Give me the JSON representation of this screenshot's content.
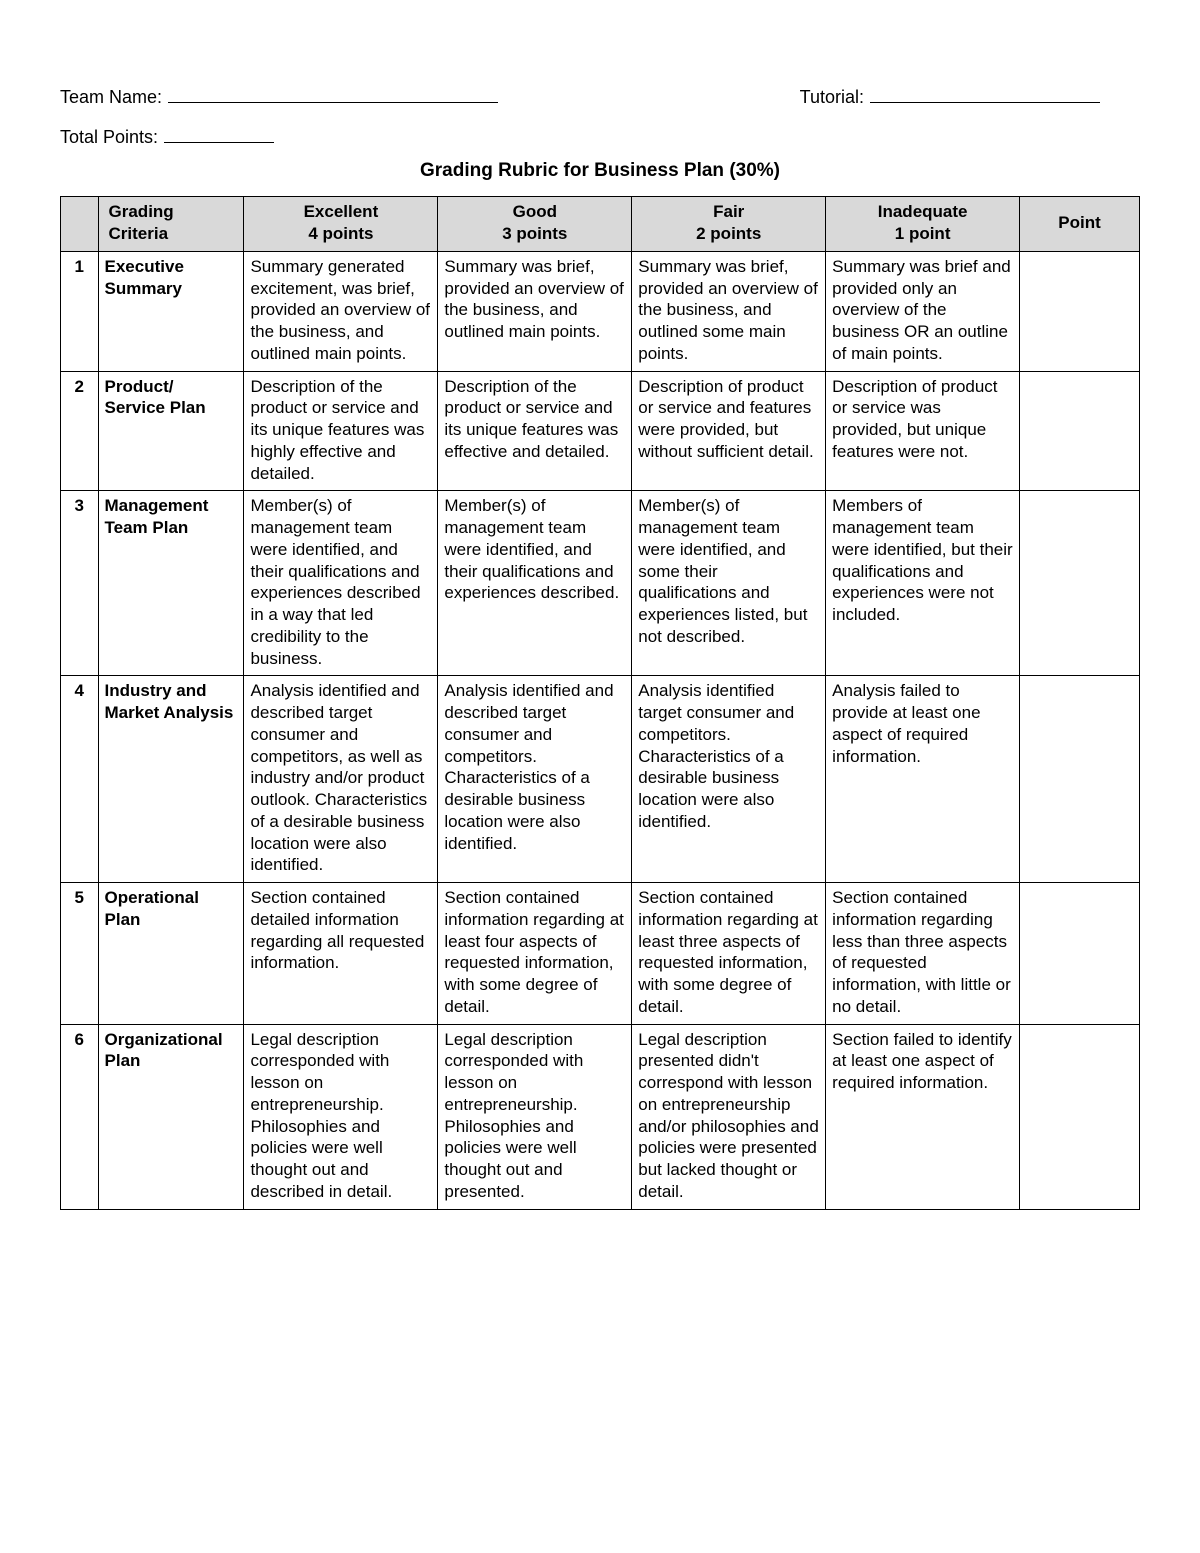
{
  "form": {
    "team_name_label": "Team Name:",
    "team_name_line_width": 330,
    "tutorial_label": "Tutorial:",
    "tutorial_line_width": 230,
    "total_points_label": "Total Points:",
    "total_points_line_width": 110
  },
  "title": "Grading Rubric for Business Plan (30%)",
  "columns": {
    "num_header": "",
    "criteria_header": "Grading Criteria",
    "levels": [
      {
        "name": "Excellent",
        "points": "4 points"
      },
      {
        "name": "Good",
        "points": "3 points"
      },
      {
        "name": "Fair",
        "points": "2 points"
      },
      {
        "name": "Inadequate",
        "points": "1 point"
      }
    ],
    "point_header": "Point"
  },
  "rows": [
    {
      "num": "1",
      "criteria": "Executive Summary",
      "cells": [
        "Summary generated excitement, was brief, provided an overview of the business, and outlined main points.",
        "Summary was brief, provided an overview of the business, and outlined main points.",
        "Summary was brief, provided an overview of the business, and outlined some main points.",
        "Summary was brief and provided only an overview of the business OR an outline of main points."
      ]
    },
    {
      "num": "2",
      "criteria": "Product/ Service Plan",
      "cells": [
        "Description of the product or service and its unique features was highly effective and detailed.",
        "Description of the product or service and its unique features was effective and detailed.",
        "Description of product or service and features were provided, but without sufficient detail.",
        "Description of product or service was provided, but unique features were not."
      ]
    },
    {
      "num": "3",
      "criteria": "Management Team Plan",
      "cells": [
        "Member(s) of management team were identified, and their qualifications and experiences described in a way that led credibility to the business.",
        "Member(s) of management team were identified, and their qualifications and experiences described.",
        "Member(s) of management team were identified, and some their qualifications and experiences listed, but not described.",
        "Members of management team were identified, but their qualifications and experiences were not included."
      ]
    },
    {
      "num": "4",
      "criteria": "Industry and Market Analysis",
      "cells": [
        "Analysis identified and described target consumer and competitors, as well as industry and/or product outlook. Characteristics of a desirable business location were also identified.",
        "Analysis identified and described target consumer and competitors. Characteristics of a desirable business location were also identified.",
        "Analysis identified target consumer and competitors. Characteristics of a desirable business location were also identified.",
        "Analysis failed to provide at least one aspect of required information."
      ]
    },
    {
      "num": "5",
      "criteria": "Operational Plan",
      "cells": [
        "Section contained detailed information regarding all requested information.",
        "Section contained information regarding at least four aspects of requested information, with some degree of detail.",
        "Section contained information regarding at least three aspects of requested information, with some degree of detail.",
        "Section contained information regarding less than three aspects of requested information, with little or no detail."
      ]
    },
    {
      "num": "6",
      "criteria": "Organizational Plan",
      "cells": [
        "Legal description corresponded with lesson on entrepreneurship. Philosophies and policies were well thought out and described in detail.",
        "Legal description corresponded with lesson on entrepreneurship. Philosophies and policies were well thought out and presented.",
        "Legal description presented didn't correspond with lesson on entrepreneurship and/or philosophies and policies were presented but lacked thought or detail.",
        "Section failed to identify at least one aspect of required information."
      ]
    }
  ],
  "style": {
    "background_color": "#ffffff",
    "border_color": "#000000",
    "header_fill": "#d9d9d9",
    "font_family": "Arial",
    "body_fontsize": 17,
    "title_fontsize": 19
  }
}
